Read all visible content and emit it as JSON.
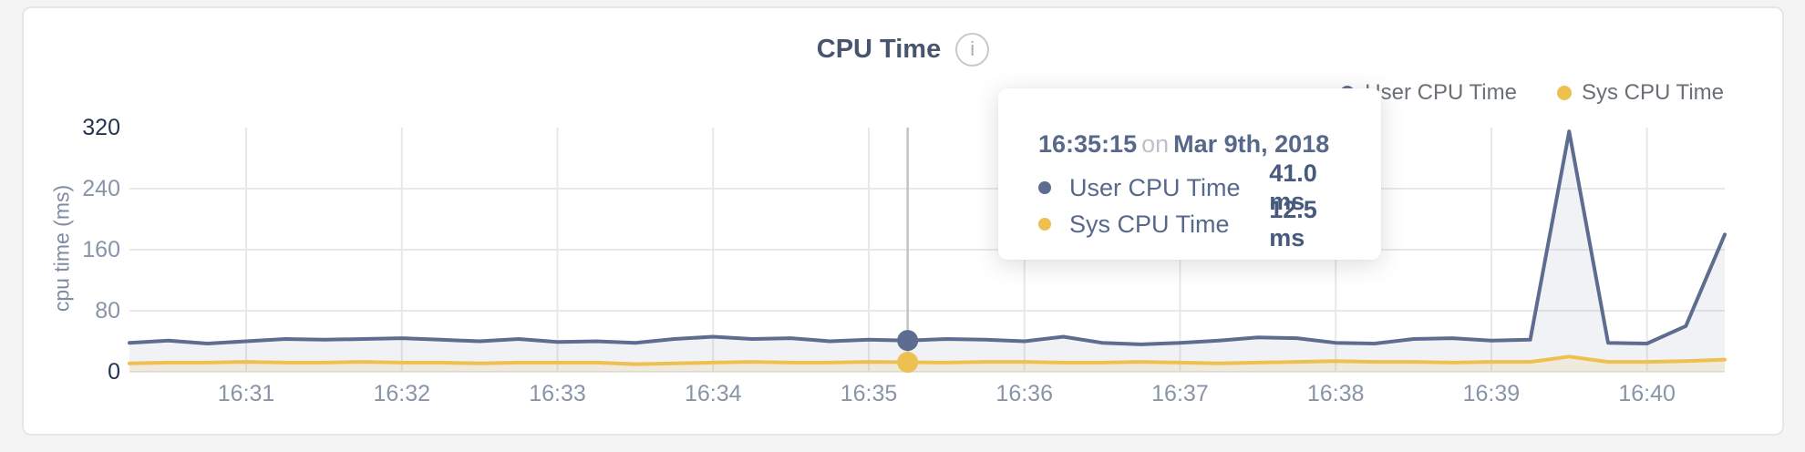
{
  "page": {
    "background_color": "#f4f4f5"
  },
  "card": {
    "background_color": "#ffffff",
    "border_color": "#e6e6e8"
  },
  "header": {
    "title": "CPU Time",
    "info_icon_glyph": "i"
  },
  "legend": {
    "items": [
      {
        "label": "User CPU Time",
        "color": "#5e6d8f"
      },
      {
        "label": "Sys CPU Time",
        "color": "#eec04f"
      }
    ]
  },
  "tooltip": {
    "time": "16:35:15",
    "preposition": "on",
    "date": "Mar 9th, 2018",
    "rows": [
      {
        "label": "User CPU Time",
        "value": "41.0 ms",
        "color": "#5e6d8f"
      },
      {
        "label": "Sys CPU Time",
        "value": "12.5 ms",
        "color": "#eec04f"
      }
    ]
  },
  "chart_data": {
    "type": "line",
    "title": "CPU Time",
    "xlabel": "",
    "ylabel": "cpu time (ms)",
    "ylim": [
      0,
      320
    ],
    "yticks": [
      0,
      80,
      160,
      240,
      320
    ],
    "xticks": [
      "16:31",
      "16:32",
      "16:33",
      "16:34",
      "16:35",
      "16:36",
      "16:37",
      "16:38",
      "16:39",
      "16:40"
    ],
    "grid": true,
    "legend_position": "top-right",
    "sample_interval_seconds": 15,
    "times": [
      "16:30:15",
      "16:30:30",
      "16:30:45",
      "16:31:00",
      "16:31:15",
      "16:31:30",
      "16:31:45",
      "16:32:00",
      "16:32:15",
      "16:32:30",
      "16:32:45",
      "16:33:00",
      "16:33:15",
      "16:33:30",
      "16:33:45",
      "16:34:00",
      "16:34:15",
      "16:34:30",
      "16:34:45",
      "16:35:00",
      "16:35:15",
      "16:35:30",
      "16:35:45",
      "16:36:00",
      "16:36:15",
      "16:36:30",
      "16:36:45",
      "16:37:00",
      "16:37:15",
      "16:37:30",
      "16:37:45",
      "16:38:00",
      "16:38:15",
      "16:38:30",
      "16:38:45",
      "16:39:00",
      "16:39:15",
      "16:39:30",
      "16:39:45",
      "16:40:00",
      "16:40:15",
      "16:40:30"
    ],
    "series": [
      {
        "name": "User CPU Time",
        "color": "#5e6d8f",
        "fill": "rgba(94,109,143,0.09)",
        "values": [
          38,
          41,
          37,
          40,
          43,
          42,
          43,
          44,
          42,
          40,
          43,
          39,
          40,
          38,
          43,
          46,
          43,
          44,
          40,
          42,
          41,
          43,
          42,
          40,
          46,
          38,
          36,
          38,
          41,
          45,
          44,
          38,
          37,
          43,
          44,
          41,
          42,
          315,
          38,
          37,
          60,
          180
        ]
      },
      {
        "name": "Sys CPU Time",
        "color": "#eec04f",
        "fill": "rgba(238,192,79,0.14)",
        "values": [
          11,
          12,
          12,
          13,
          12,
          12,
          13,
          12,
          12,
          11,
          12,
          12,
          12,
          10,
          11,
          12,
          13,
          12,
          12,
          13,
          12.5,
          12,
          13,
          13,
          12,
          12,
          13,
          12,
          11,
          12,
          13,
          14,
          13,
          13,
          12,
          13,
          13,
          20,
          13,
          13,
          14,
          16
        ]
      }
    ],
    "hover_point": {
      "time": "16:35:15",
      "date": "Mar 9th, 2018",
      "values": {
        "User CPU Time": 41.0,
        "Sys CPU Time": 12.5
      }
    }
  }
}
